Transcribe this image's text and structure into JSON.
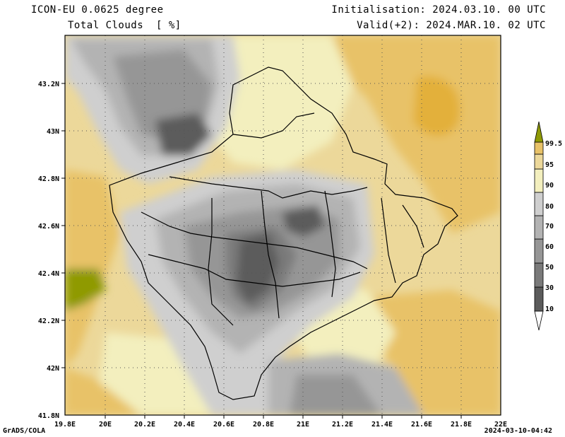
{
  "header": {
    "model": "ICON-EU 0.0625 degree",
    "variable": "Total Clouds  [ %]",
    "init": "Initialisation: 2024.03.10. 00 UTC",
    "valid": "Valid(+2): 2024.MAR.10. 02 UTC"
  },
  "footer": {
    "credit": "GrADS/COLA",
    "timestamp": "2024-03-10-04:42"
  },
  "map": {
    "lon_ticks": [
      "19.8E",
      "20E",
      "20.2E",
      "20.4E",
      "20.6E",
      "20.8E",
      "21E",
      "21.2E",
      "21.4E",
      "21.6E",
      "21.8E",
      "22E"
    ],
    "lat_ticks": [
      "41.8N",
      "42N",
      "42.2N",
      "42.4N",
      "42.6N",
      "42.8N",
      "43N",
      "43.2N"
    ],
    "gridlines": "dotted"
  },
  "colorbar": {
    "levels": [
      "10",
      "30",
      "50",
      "60",
      "70",
      "80",
      "90",
      "95",
      "99.5"
    ],
    "colors": [
      "#5b5b5b",
      "#7a7a7a",
      "#969696",
      "#b3b3b3",
      "#cfcfcf",
      "#f3efbe",
      "#ecd89a",
      "#e8c268",
      "#e3b03a",
      "#8f9a06"
    ]
  }
}
